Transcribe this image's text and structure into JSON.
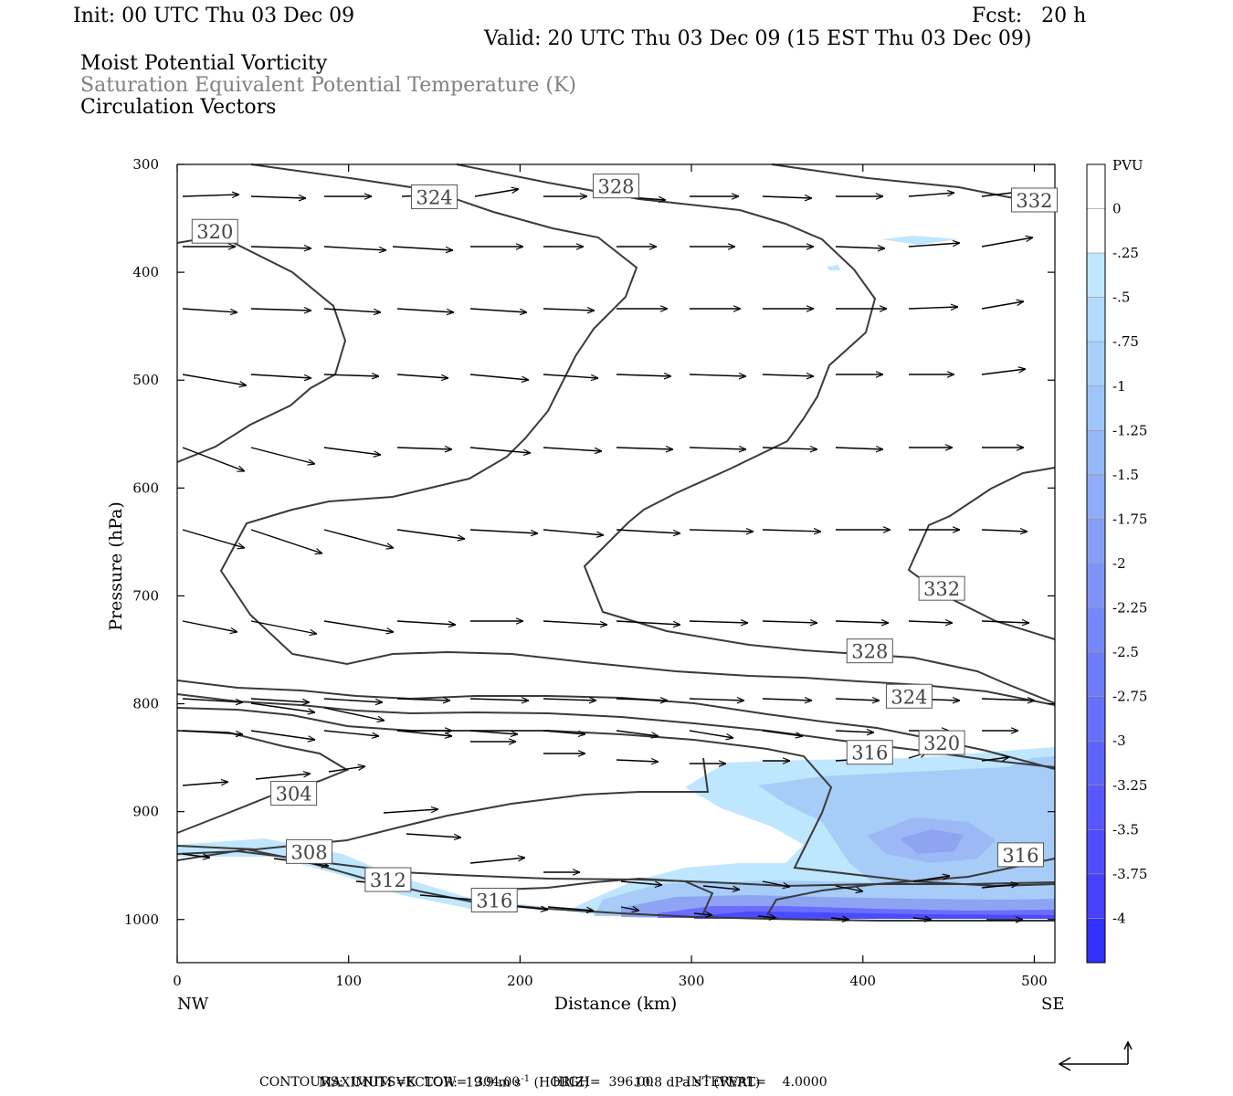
{
  "header": {
    "init": "Init: 00 UTC Thu 03 Dec 09",
    "fcst": "Fcst:   20 h",
    "valid": "Valid: 20 UTC Thu 03 Dec 09 (15 EST Thu 03 Dec 09)",
    "title1": "Moist Potential Vorticity",
    "title2": "Saturation Equivalent Potential Temperature (K)",
    "title3": "Circulation Vectors"
  },
  "colors": {
    "title2": "#808080",
    "contour": "#3a3a3a",
    "pv_light": "#bfe6ff",
    "pv_mid": "#9fc4f5",
    "pv_deep": "#5a5aff"
  },
  "footer": {
    "max_vector_label": "MAXIMUM VECTOR:",
    "max_vector_horiz": "19.9 m s",
    "max_vector_horiz_unit": "(HORIZ)",
    "max_vector_vert": "10.8 dPa s",
    "max_vector_vert_unit": "(VERT)",
    "exponent": "-1",
    "contours": "CONTOURS:  UNITS=K  LOW=  304.00        HIGH=  396.00        INTERVAL=    4.0000"
  },
  "chart_data": {
    "type": "cross-section",
    "xlabel": "Distance (km)",
    "ylabel": "Pressure (hPa)",
    "xlim": [
      0,
      512
    ],
    "ylim": [
      1040,
      300
    ],
    "x_ticks": [
      0,
      100,
      200,
      300,
      400,
      500
    ],
    "y_ticks": [
      300,
      400,
      500,
      600,
      700,
      800,
      900,
      1000
    ],
    "x_end_labels": {
      "left": "NW",
      "right": "SE"
    },
    "colorbar": {
      "unit": "PVU",
      "labels": [
        "0",
        "-.25",
        "-.5",
        "-.75",
        "-1",
        "-1.25",
        "-1.5",
        "-1.75",
        "-2",
        "-2.25",
        "-2.5",
        "-2.75",
        "-3",
        "-3.25",
        "-3.5",
        "-3.75",
        "-4"
      ]
    },
    "contour_labels": [
      {
        "text": "320",
        "x": 22,
        "p": 362
      },
      {
        "text": "324",
        "x": 150,
        "p": 330
      },
      {
        "text": "328",
        "x": 256,
        "p": 320
      },
      {
        "text": "332",
        "x": 500,
        "p": 333
      },
      {
        "text": "332",
        "x": 446,
        "p": 693
      },
      {
        "text": "328",
        "x": 404,
        "p": 751
      },
      {
        "text": "324",
        "x": 427,
        "p": 793
      },
      {
        "text": "320",
        "x": 446,
        "p": 836
      },
      {
        "text": "316",
        "x": 404,
        "p": 845
      },
      {
        "text": "316",
        "x": 492,
        "p": 940
      },
      {
        "text": "304",
        "x": 68,
        "p": 883
      },
      {
        "text": "308",
        "x": 77,
        "p": 937
      },
      {
        "text": "312",
        "x": 123,
        "p": 963
      },
      {
        "text": "316",
        "x": 185,
        "p": 982
      }
    ]
  }
}
